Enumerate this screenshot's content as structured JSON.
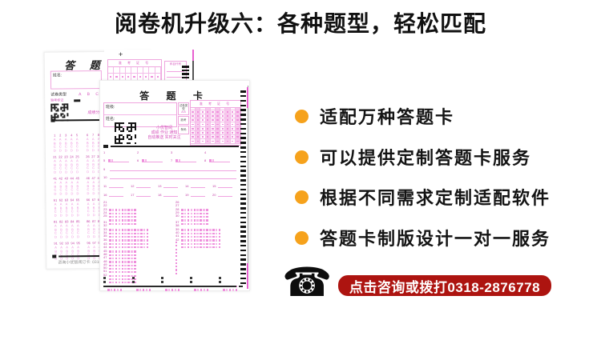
{
  "header": {
    "title": "阅卷机升级六：各种题型，轻松匹配"
  },
  "features": {
    "bullet_color": "#F6A21C",
    "items": [
      "适配万种答题卡",
      "可以提供定制答题卡服务",
      "根据不同需求定制适配软件",
      "答题卡制版设计一对一服务"
    ]
  },
  "cta": {
    "icon": "telephone-icon",
    "icon_glyph": "☎",
    "label": "点击咨询或拨打0318-2876778",
    "bg_color": "#AD1410",
    "text_color": "#FFFFFF"
  },
  "colors": {
    "pink_border": "#EFA6DE",
    "pink_text": "#D553BC",
    "pink_fill": "#F8CBEE",
    "mark_pink": "#EE8FDC"
  },
  "sheet_small": {
    "title": "答 题 卡",
    "name_label": "姓名:",
    "paper_type_label": "试卷类型",
    "paper_type_options": "A  B  C  D",
    "fill_note": "缺考标记",
    "qr_caption_line1": "小优智阅",
    "qr_caption_line2": "成绩分析自动推送",
    "footer": "咨询小优智阅订卡: 0318-28",
    "block_starts": [
      1,
      21,
      41,
      61,
      81,
      91
    ],
    "option_letters": [
      "A",
      "B",
      "C",
      "D"
    ]
  },
  "sheet_back": {
    "plus_mark": "+",
    "exam_no_label": "准 考 证 号",
    "subject_label": "科目代号"
  },
  "sheet_large": {
    "title": "答  题  卡",
    "class_label": "班级:",
    "name_label": "姓名:",
    "exam_no_label": "准 考 证 号",
    "mini_boxes": [
      "试卷类型",
      "缺考",
      "条码"
    ],
    "qr_caption": [
      "小优智阅",
      "成绩 作业 通知",
      "自动推送 实时关注"
    ],
    "qa": {
      "row1": [
        1,
        2,
        3,
        4
      ],
      "row2": [
        5,
        6,
        7,
        8
      ],
      "long_rows": [
        9,
        10
      ],
      "row5": [
        11,
        12,
        13,
        14,
        15
      ],
      "row6": [
        16,
        17,
        18,
        19,
        20
      ],
      "sections": [
        {
          "groups": [
            {
              "start": 21,
              "rows": 5,
              "cols": 9
            },
            {
              "start": 26,
              "rows": 5,
              "cols": 9
            }
          ]
        },
        {
          "groups": [
            {
              "start": 31,
              "rows": 6,
              "cols": 13
            },
            {
              "start": 37,
              "rows": 6,
              "cols": 13
            }
          ]
        },
        {
          "groups": [
            {
              "start": 43,
              "rows": 10,
              "cols": 9
            }
          ]
        }
      ],
      "bottom_starts": [
        51,
        52,
        53,
        54,
        55
      ]
    }
  }
}
